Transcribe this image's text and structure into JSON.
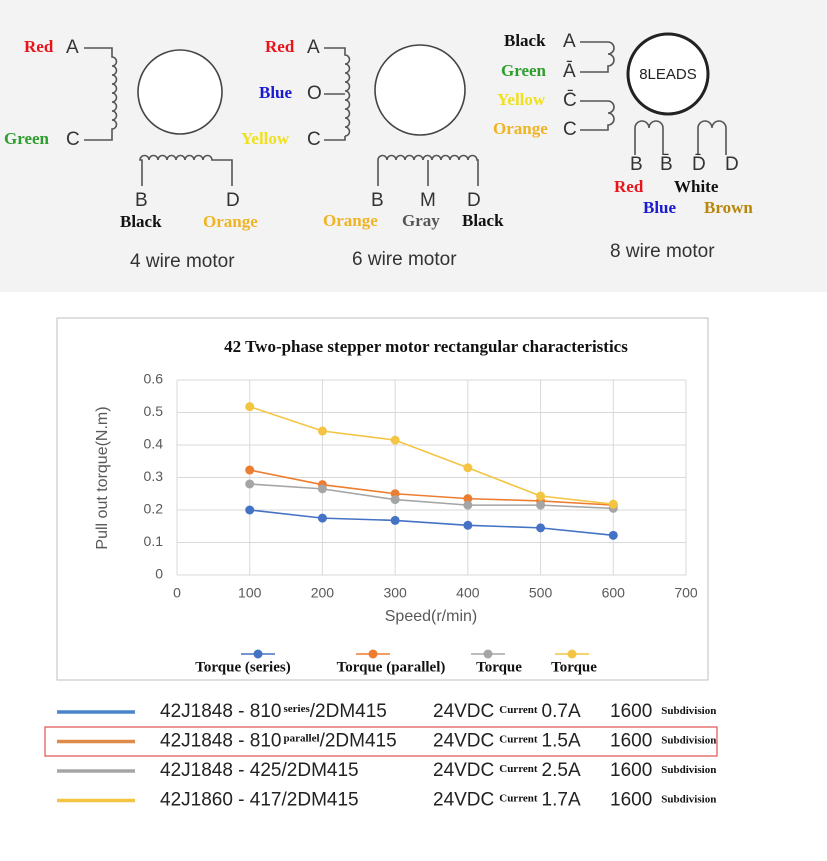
{
  "diagrams": [
    {
      "caption": "4 wire motor",
      "labels": [
        {
          "text": "Red",
          "color": "#e8141c"
        },
        {
          "text": "A"
        },
        {
          "text": "Green",
          "color": "#2e9e2e"
        },
        {
          "text": "C"
        },
        {
          "text": "B"
        },
        {
          "text": "D"
        },
        {
          "text": "Black",
          "color": "#111111"
        },
        {
          "text": "Orange",
          "color": "#f0b423"
        }
      ]
    },
    {
      "caption": "6 wire motor",
      "labels": [
        {
          "text": "Red",
          "color": "#e8141c"
        },
        {
          "text": "A"
        },
        {
          "text": "Blue",
          "color": "#1a1ad0"
        },
        {
          "text": "O"
        },
        {
          "text": "Yellow",
          "color": "#f0e020"
        },
        {
          "text": "C"
        },
        {
          "text": "B"
        },
        {
          "text": "M"
        },
        {
          "text": "D"
        },
        {
          "text": "Orange",
          "color": "#f0b423"
        },
        {
          "text": "Gray",
          "color": "#555555"
        },
        {
          "text": "Black",
          "color": "#111111"
        }
      ]
    },
    {
      "caption": "8 wire motor",
      "badge": "8LEADS",
      "labels": [
        {
          "text": "Black",
          "color": "#111111"
        },
        {
          "text": "A"
        },
        {
          "text": "Green",
          "color": "#2e9e2e"
        },
        {
          "text": "Ā"
        },
        {
          "text": "Yellow",
          "color": "#f0e020"
        },
        {
          "text": "C̄"
        },
        {
          "text": "Orange",
          "color": "#f0b423"
        },
        {
          "text": "C"
        },
        {
          "text": "B"
        },
        {
          "text": "B̄"
        },
        {
          "text": "D̄"
        },
        {
          "text": "D"
        },
        {
          "text": "Red",
          "color": "#e8141c"
        },
        {
          "text": "White",
          "color": "#111111"
        },
        {
          "text": "Blue",
          "color": "#1a1ad0"
        },
        {
          "text": "Brown",
          "color": "#b8860b"
        }
      ]
    }
  ],
  "chart_data": {
    "type": "line",
    "title": "42 Two-phase stepper motor rectangular characteristics",
    "x_label": "Speed(r/min)",
    "y_label": "Pull out torque(N.m)",
    "x": [
      100,
      200,
      300,
      400,
      500,
      600
    ],
    "series": [
      {
        "name": "Torque (series)",
        "color": "#4472c4",
        "values": [
          0.2,
          0.175,
          0.168,
          0.153,
          0.145,
          0.122
        ]
      },
      {
        "name": "Torque (parallel)",
        "color": "#ed7d31",
        "values": [
          0.323,
          0.278,
          0.25,
          0.235,
          0.228,
          0.215
        ]
      },
      {
        "name": "Torque",
        "color": "#a5a5a5",
        "values": [
          0.28,
          0.265,
          0.232,
          0.215,
          0.215,
          0.205
        ]
      },
      {
        "name": "Torque",
        "color": "#f4c542",
        "values": [
          0.518,
          0.443,
          0.415,
          0.33,
          0.243,
          0.218
        ]
      }
    ],
    "xlim": [
      0,
      700
    ],
    "xticks": [
      0,
      100,
      200,
      300,
      400,
      500,
      600,
      700
    ],
    "ylim": [
      0,
      0.6
    ],
    "yticks": [
      0,
      0.1,
      0.2,
      0.3,
      0.4,
      0.5,
      0.6
    ],
    "grid": true,
    "legend": "bottom"
  },
  "legend_table": {
    "rows": [
      {
        "color": "#4a86c8",
        "model": "42J1848 - 810",
        "mode": "series",
        "driver": "/2DM415",
        "voltage": "24VDC",
        "current_label": "Current",
        "current": "0.7A",
        "steps": "1600",
        "steps_label": "Subdivision"
      },
      {
        "color": "#e08a4a",
        "model": "42J1848 - 810",
        "mode": "parallel",
        "driver": "/2DM415",
        "voltage": "24VDC",
        "current_label": "Current",
        "current": "1.5A",
        "steps": "1600",
        "steps_label": "Subdivision"
      },
      {
        "color": "#a5a5a5",
        "model": "42J1848 - 425",
        "driver": "/2DM415",
        "voltage": "24VDC",
        "current_label": "Current",
        "current": "2.5A",
        "steps": "1600",
        "steps_label": "Subdivision"
      },
      {
        "color": "#f4c542",
        "model": "42J1860 - 417",
        "driver": "/2DM415",
        "voltage": "24VDC",
        "current_label": "Current",
        "current": "1.7A",
        "steps": "1600",
        "steps_label": "Subdivision"
      }
    ]
  }
}
